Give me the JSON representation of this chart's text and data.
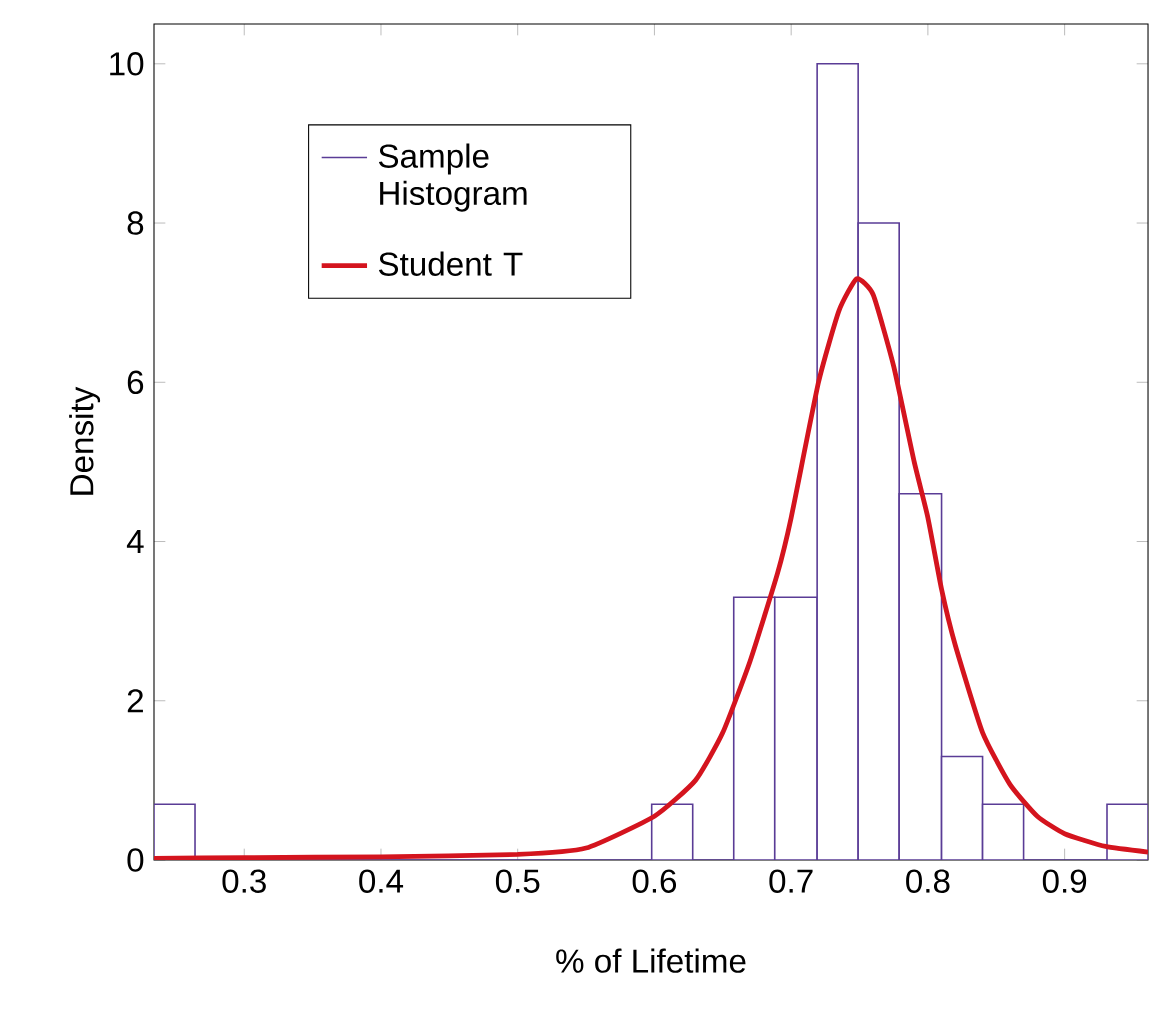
{
  "chart_data": {
    "type": "histogram",
    "xlabel": "% of Lifetime",
    "ylabel": "Density",
    "bins": [
      0.234,
      0.264,
      0.598,
      0.628,
      0.658,
      0.688,
      0.719,
      0.749,
      0.779,
      0.81,
      0.84,
      0.87,
      0.931,
      0.961
    ],
    "series": [
      {
        "name": "Sample Histogram",
        "color": "#5a3c96",
        "values": [
          0.7,
          0,
          0.7,
          0,
          3.3,
          3.3,
          10,
          8,
          4.6,
          1.3,
          0.7,
          0,
          0.7
        ]
      },
      {
        "name": "Student T",
        "type": "line",
        "color": "#d4141e",
        "x": [
          0.234,
          0.3,
          0.4,
          0.5,
          0.55,
          0.6,
          0.63,
          0.65,
          0.67,
          0.69,
          0.7,
          0.72,
          0.735,
          0.748,
          0.76,
          0.775,
          0.79,
          0.8,
          0.81,
          0.82,
          0.84,
          0.86,
          0.88,
          0.9,
          0.93,
          0.961
        ],
        "values": [
          0.02,
          0.03,
          0.04,
          0.07,
          0.15,
          0.55,
          1.0,
          1.6,
          2.5,
          3.6,
          4.3,
          6.0,
          6.9,
          7.3,
          7.1,
          6.2,
          5.0,
          4.3,
          3.4,
          2.7,
          1.6,
          0.95,
          0.55,
          0.33,
          0.17,
          0.1
        ]
      }
    ],
    "xlim": [
      0.234,
      0.961
    ],
    "ylim": [
      0,
      10.5
    ],
    "xticks": [
      0.3,
      0.4,
      0.5,
      0.6,
      0.7,
      0.8,
      0.9
    ],
    "yticks": [
      0,
      2,
      4,
      6,
      8,
      10
    ],
    "legend": "top left",
    "grid": false,
    "marker": "none",
    "line_style": "solid"
  }
}
